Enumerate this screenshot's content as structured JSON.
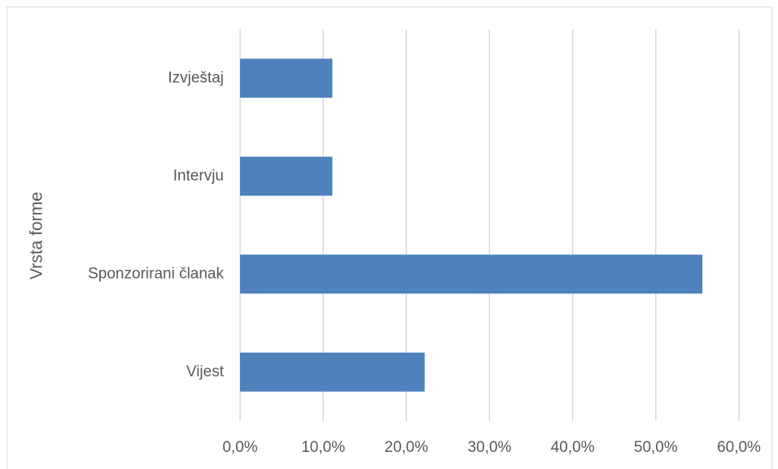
{
  "chart_data": {
    "type": "bar",
    "orientation": "horizontal",
    "y_label": "Vrsta forme",
    "categories": [
      "Izvještaj",
      "Intervju",
      "Sponzorirani članak",
      "Vijest"
    ],
    "values": [
      11.1,
      11.1,
      55.6,
      22.2
    ],
    "color": "#4f81bd",
    "xlim": [
      0,
      60
    ],
    "xticks": [
      {
        "value": 0,
        "label": "0,0%"
      },
      {
        "value": 10,
        "label": "10,0%"
      },
      {
        "value": 20,
        "label": "20,0%"
      },
      {
        "value": 30,
        "label": "30,0%"
      },
      {
        "value": 40,
        "label": "40,0%"
      },
      {
        "value": 50,
        "label": "50,0%"
      },
      {
        "value": 60,
        "label": "60,0%"
      }
    ],
    "grid": true
  }
}
